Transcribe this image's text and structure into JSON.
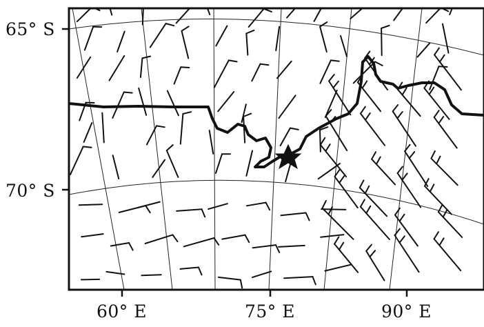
{
  "map": {
    "latitude_labels": [
      "65° S",
      "70° S"
    ],
    "longitude_labels": [
      "60° E",
      "75° E",
      "90° E"
    ],
    "marker": "star-icon",
    "colors": {
      "ink": "#111111",
      "background": "#ffffff"
    }
  }
}
